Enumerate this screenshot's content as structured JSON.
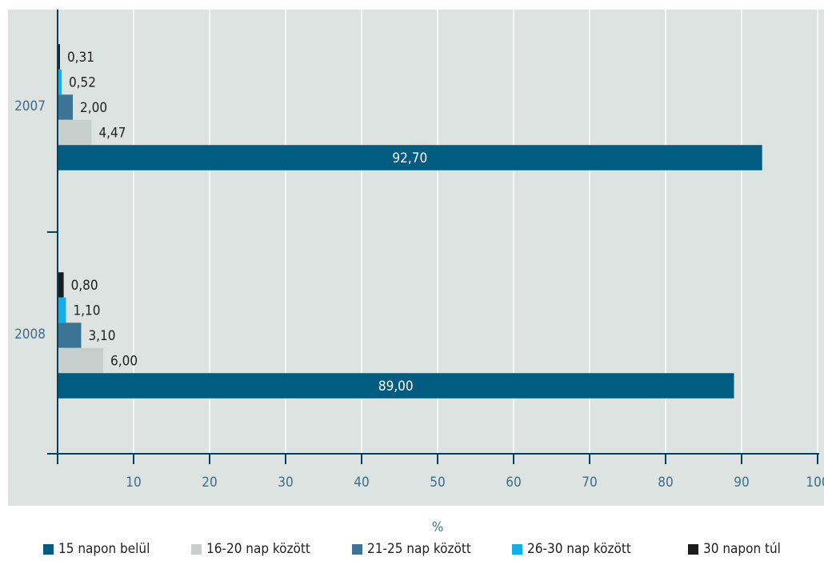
{
  "chart_data": {
    "type": "bar",
    "orientation": "horizontal",
    "categories": [
      "2007",
      "2008"
    ],
    "series": [
      {
        "name": "15 napon belül",
        "color": "#005c80",
        "values": [
          92.7,
          89.0
        ],
        "labels": [
          "92,70",
          "89,00"
        ]
      },
      {
        "name": "16-20 nap között",
        "color": "#c6cfcb",
        "values": [
          4.47,
          6.0
        ],
        "labels": [
          "4,47",
          "6,00"
        ]
      },
      {
        "name": "21-25 nap között",
        "color": "#3c7496",
        "values": [
          2.0,
          3.1
        ],
        "labels": [
          "2,00",
          "3,10"
        ]
      },
      {
        "name": "26-30 nap között",
        "color": "#12aee8",
        "values": [
          0.52,
          1.1
        ],
        "labels": [
          "0,52",
          "1,10"
        ]
      },
      {
        "name": "30 napon túl",
        "color": "#1c1c1c",
        "values": [
          0.31,
          0.8
        ],
        "labels": [
          "0,31",
          "0,80"
        ]
      }
    ],
    "xlabel": "%",
    "xlim": [
      0,
      100
    ],
    "xticks": [
      "10",
      "20",
      "30",
      "40",
      "50",
      "60",
      "70",
      "80",
      "90",
      "100"
    ],
    "grid": true,
    "legend_position": "bottom",
    "plot_background": "#dde3e0",
    "gridline_color": "#ffffff",
    "axis_color": "#00435f",
    "tick_label_color": "#3a6f8c"
  }
}
